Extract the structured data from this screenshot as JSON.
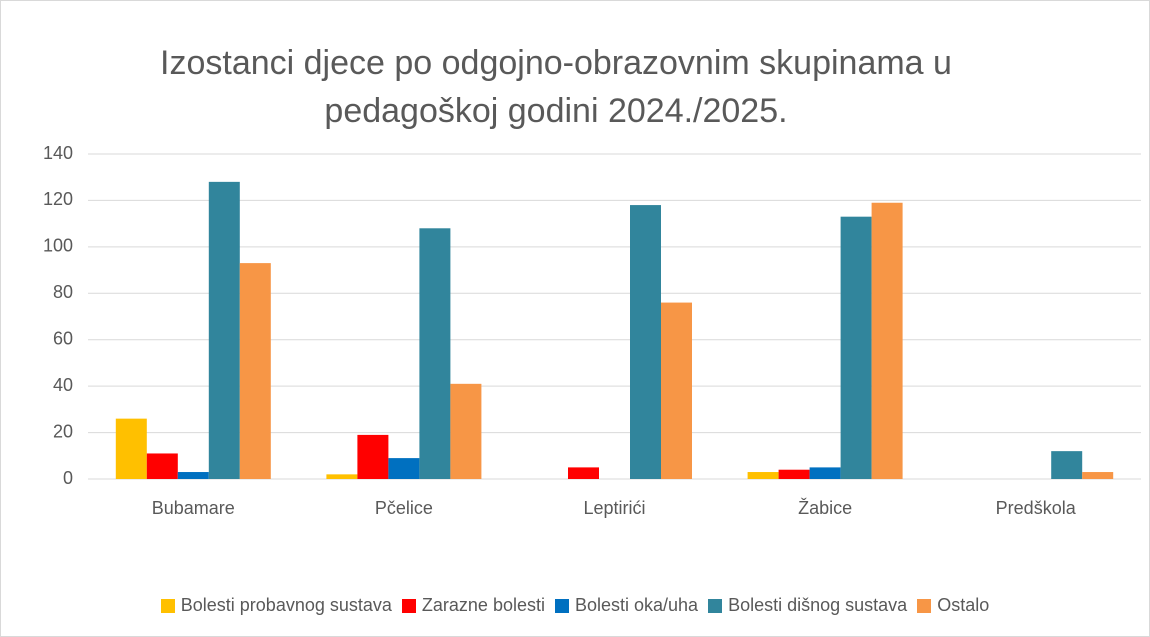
{
  "chart_data": {
    "type": "bar",
    "title": "Izostanci djece po odgojno-obrazovnim skupinama u pedagoškoj godini 2024./2025.",
    "categories": [
      "Bubamare",
      "Pčelice",
      "Leptirići",
      "Žabice",
      "Predškola"
    ],
    "series": [
      {
        "name": "Bolesti probavnog sustava",
        "color": "#ffc000",
        "values": [
          26,
          2,
          0,
          3,
          0
        ]
      },
      {
        "name": "Zarazne bolesti",
        "color": "#ff0000",
        "values": [
          11,
          19,
          5,
          4,
          0
        ]
      },
      {
        "name": "Bolesti oka/uha",
        "color": "#0070c0",
        "values": [
          3,
          9,
          0,
          5,
          0
        ]
      },
      {
        "name": "Bolesti dišnog sustava",
        "color": "#31859c",
        "values": [
          128,
          108,
          118,
          113,
          12
        ]
      },
      {
        "name": "Ostalo",
        "color": "#f79646",
        "values": [
          93,
          41,
          76,
          119,
          3
        ]
      }
    ],
    "ylim": [
      0,
      140
    ],
    "yticks": [
      0,
      20,
      40,
      60,
      80,
      100,
      120,
      140
    ],
    "grid": true,
    "legend": "bottom"
  }
}
